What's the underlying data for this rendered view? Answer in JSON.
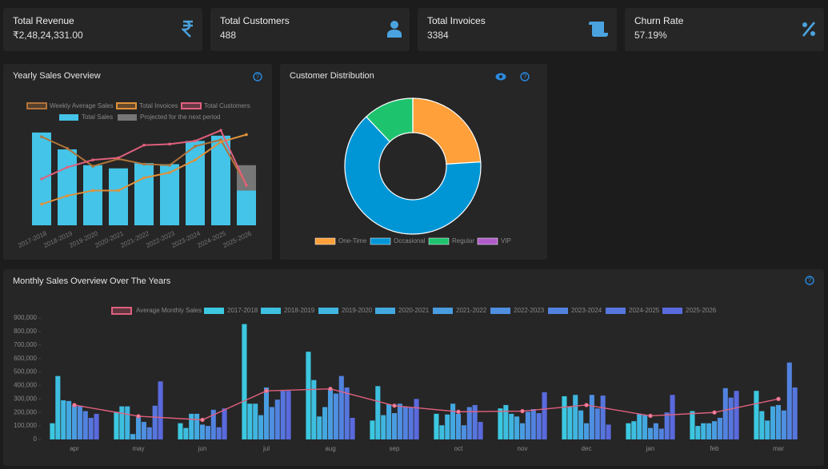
{
  "kpis": [
    {
      "label": "Total Revenue",
      "value": "₹2,48,24,331.00"
    },
    {
      "label": "Total Customers",
      "value": "488"
    },
    {
      "label": "Total Invoices",
      "value": "3384"
    },
    {
      "label": "Churn Rate",
      "value": "57.19%"
    }
  ],
  "chart_data": [
    {
      "type": "combo",
      "title": "Yearly Sales Overview",
      "categories": [
        "2017-2018",
        "2018-2019",
        "2019-2020",
        "2020-2021",
        "2021-2022",
        "2022-2023",
        "2023-2024",
        "2024-2025",
        "2025-2026"
      ],
      "ylim": [
        0,
        100
      ],
      "series": [
        {
          "name": "Weekly Average Sales",
          "type": "line",
          "color": "#b0733a",
          "values": [
            84,
            73,
            56,
            63,
            58,
            57,
            75,
            81,
            38
          ]
        },
        {
          "name": "Total Invoices",
          "type": "line",
          "color": "#e0903a",
          "values": [
            20,
            28,
            33,
            33,
            45,
            50,
            62,
            79,
            86
          ]
        },
        {
          "name": "Total Customers",
          "type": "line",
          "color": "#e0607e",
          "values": [
            44,
            55,
            62,
            64,
            76,
            77,
            80,
            90,
            38
          ]
        },
        {
          "name": "Total Sales",
          "type": "bar",
          "color": "#44c4e8",
          "values": [
            88,
            72,
            57,
            54,
            59,
            58,
            80,
            85,
            33
          ]
        },
        {
          "name": "Projected for the next period",
          "type": "bar",
          "color": "#777777",
          "values": [
            null,
            null,
            null,
            null,
            null,
            null,
            null,
            null,
            24
          ]
        }
      ]
    },
    {
      "type": "donut",
      "title": "Customer Distribution",
      "categories": [
        "One-Time",
        "Occasional",
        "Regular",
        "VIP"
      ],
      "values": [
        24,
        64,
        12,
        0
      ],
      "colors": [
        "#ffa03a",
        "#0096d6",
        "#1ec36e",
        "#b05cc8"
      ]
    },
    {
      "type": "bar",
      "title": "Monthly Sales Overview Over The Years",
      "categories": [
        "apr",
        "may",
        "jun",
        "jul",
        "aug",
        "sep",
        "oct",
        "nov",
        "dec",
        "jan",
        "feb",
        "mar"
      ],
      "ylim": [
        0,
        900000
      ],
      "yticks": [
        0,
        {
          "value": 100000,
          "label": "100,000"
        },
        {
          "value": 200000,
          "label": "200,000"
        },
        {
          "value": 300000,
          "label": "300,000"
        },
        {
          "value": 400000,
          "label": "400,000"
        },
        {
          "value": 500000,
          "label": "500,000"
        },
        {
          "value": 600000,
          "label": "600,000"
        },
        {
          "value": 700000,
          "label": "700,000"
        },
        {
          "value": 800000,
          "label": "800,000"
        },
        {
          "value": 900000,
          "label": "900,000"
        }
      ],
      "line": {
        "name": "Average Monthly Sales",
        "color": "#e0607e",
        "values": [
          255000,
          172000,
          145000,
          360000,
          375000,
          250000,
          205000,
          210000,
          255000,
          175000,
          200000,
          300000
        ]
      },
      "series": [
        {
          "name": "2017-2018",
          "color": "#3cc8e0",
          "values": [
            120000,
            205000,
            120000,
            855000,
            650000,
            140000,
            190000,
            230000,
            320000,
            120000,
            210000,
            360000
          ]
        },
        {
          "name": "2018-2019",
          "color": "#3ebfe0",
          "values": [
            470000,
            245000,
            85000,
            265000,
            440000,
            395000,
            105000,
            255000,
            240000,
            135000,
            100000,
            210000
          ]
        },
        {
          "name": "2019-2020",
          "color": "#40b5e0",
          "values": [
            290000,
            245000,
            190000,
            265000,
            170000,
            180000,
            185000,
            190000,
            330000,
            190000,
            120000,
            140000
          ]
        },
        {
          "name": "2020-2021",
          "color": "#44a8e0",
          "values": [
            285000,
            40000,
            190000,
            180000,
            240000,
            260000,
            265000,
            170000,
            215000,
            180000,
            120000,
            245000
          ]
        },
        {
          "name": "2021-2022",
          "color": "#4a9ce0",
          "values": [
            255000,
            165000,
            110000,
            385000,
            370000,
            195000,
            190000,
            120000,
            120000,
            85000,
            135000,
            255000
          ]
        },
        {
          "name": "2022-2023",
          "color": "#4f8fe0",
          "values": [
            250000,
            130000,
            100000,
            240000,
            340000,
            265000,
            105000,
            205000,
            330000,
            120000,
            160000,
            215000
          ]
        },
        {
          "name": "2023-2024",
          "color": "#5282df",
          "values": [
            210000,
            90000,
            220000,
            295000,
            470000,
            245000,
            240000,
            225000,
            230000,
            80000,
            380000,
            570000
          ]
        },
        {
          "name": "2024-2025",
          "color": "#5676de",
          "values": [
            160000,
            250000,
            90000,
            360000,
            385000,
            240000,
            255000,
            195000,
            325000,
            200000,
            310000,
            385000
          ]
        },
        {
          "name": "2025-2026",
          "color": "#5a6ade",
          "values": [
            190000,
            430000,
            230000,
            360000,
            160000,
            300000,
            130000,
            350000,
            110000,
            330000,
            360000,
            null
          ]
        }
      ]
    }
  ]
}
